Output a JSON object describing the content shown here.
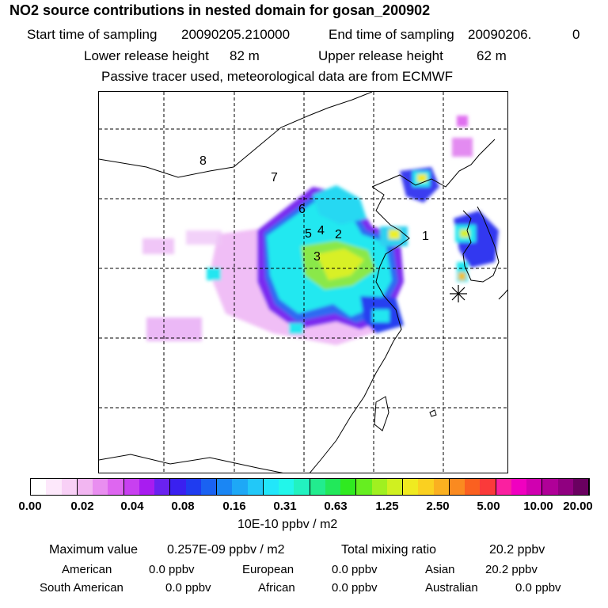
{
  "title": "NO2 source contributions in nested domain for gosan_200902",
  "header": {
    "start_label": "Start time of sampling",
    "start_value": "20090205.210000",
    "end_label": "End time of sampling",
    "end_value": "20090206.",
    "end_suffix": "0",
    "lower_label": "Lower release height",
    "lower_value": "82 m",
    "upper_label": "Upper release height",
    "upper_value": "62 m",
    "note": "Passive tracer used, meteorological data are from ECMWF"
  },
  "map": {
    "region_labels": [
      "1",
      "2",
      "3",
      "4",
      "5",
      "6",
      "7",
      "8"
    ],
    "receptor_marker": "asterisk-icon"
  },
  "colorbar": {
    "colors": [
      "#ffffff",
      "#fde8fb",
      "#f8d0f6",
      "#f2b6f1",
      "#e98ef0",
      "#de66f0",
      "#c840f0",
      "#a81cf0",
      "#6a22f0",
      "#3a20f0",
      "#1f3cf0",
      "#1a62f2",
      "#1a86f4",
      "#1ea8f6",
      "#22c8f8",
      "#22e6fa",
      "#22f6ea",
      "#22f2c0",
      "#22ec8e",
      "#22e85a",
      "#30ea20",
      "#66ee20",
      "#a0f020",
      "#d0f020",
      "#f0ea20",
      "#fad020",
      "#fab020",
      "#fa8a20",
      "#fa6020",
      "#fa3a3a",
      "#fa20a0",
      "#f000c0",
      "#d000b0",
      "#b00098",
      "#900080",
      "#6a0060"
    ],
    "tick_labels": [
      "0.00",
      "0.02",
      "0.04",
      "0.08",
      "0.16",
      "0.31",
      "0.63",
      "1.25",
      "2.50",
      "5.00",
      "10.00",
      "20.00"
    ],
    "units": "10E-10 ppbv / m2"
  },
  "stats": {
    "max_label": "Maximum value",
    "max_value": "0.257E-09 ppbv / m2",
    "total_label": "Total mixing ratio",
    "total_value": "20.2 ppbv",
    "regions": [
      {
        "name": "American",
        "value": "0.0 ppbv"
      },
      {
        "name": "European",
        "value": "0.0 ppbv"
      },
      {
        "name": "Asian",
        "value": "20.2 ppbv"
      },
      {
        "name": "South American",
        "value": "0.0 ppbv"
      },
      {
        "name": "African",
        "value": "0.0 ppbv"
      },
      {
        "name": "Australian",
        "value": "0.0 ppbv"
      }
    ]
  }
}
